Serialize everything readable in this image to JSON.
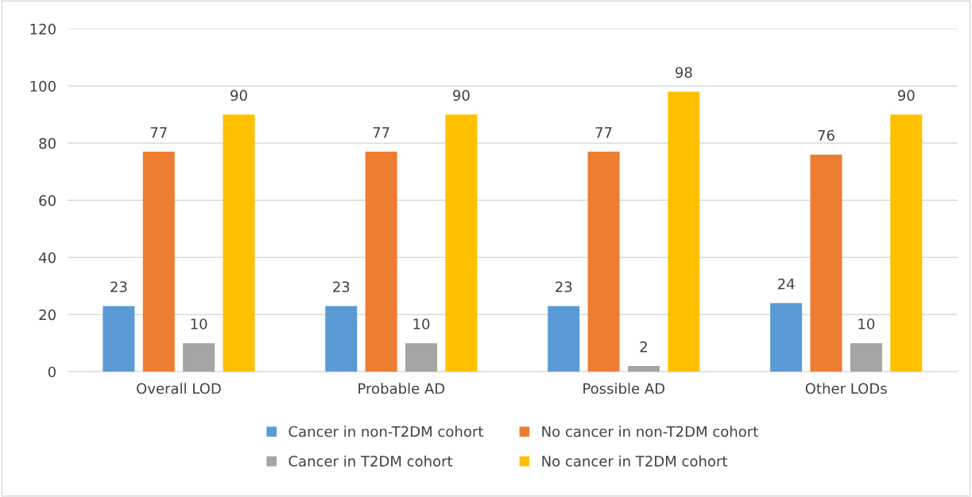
{
  "chart_data": {
    "type": "bar",
    "categories": [
      "Overall LOD",
      "Probable AD",
      "Possible AD",
      "Other LODs"
    ],
    "series": [
      {
        "name": "Cancer in non-T2DM cohort",
        "color": "#5b9bd5",
        "values": [
          23,
          23,
          23,
          24
        ]
      },
      {
        "name": "No cancer in non-T2DM cohort",
        "color": "#ed7d31",
        "values": [
          77,
          77,
          77,
          76
        ]
      },
      {
        "name": "Cancer in T2DM cohort",
        "color": "#a5a5a5",
        "values": [
          10,
          10,
          2,
          10
        ]
      },
      {
        "name": "No cancer in T2DM cohort",
        "color": "#ffc000",
        "values": [
          90,
          90,
          98,
          90
        ]
      }
    ],
    "ylim": [
      0,
      120
    ],
    "yticks": [
      0,
      20,
      40,
      60,
      80,
      100,
      120
    ],
    "grid": "y",
    "legend": "bottom",
    "data_labels": true
  }
}
